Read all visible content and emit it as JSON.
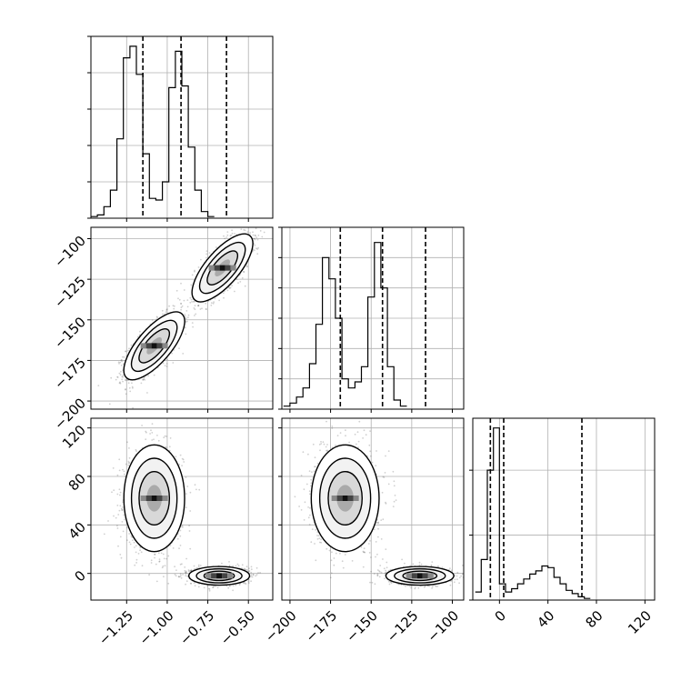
{
  "figure": {
    "background": "#ffffff",
    "grid": true
  },
  "colors": {
    "line": "#000000",
    "grid": "#b0b0b0",
    "density_dark": "#000000",
    "density_light": "#f4f4f4",
    "scatter": "#555555"
  },
  "chart_data": [
    {
      "type": "histogram",
      "param": "p1",
      "x_range": [
        -1.47,
        -0.35
      ],
      "bin_width": 0.04,
      "bin_start": -1.47,
      "counts": [
        1,
        2,
        7,
        17,
        48,
        97,
        104,
        87,
        39,
        12,
        11,
        22,
        79,
        101,
        80,
        43,
        17,
        4,
        1
      ],
      "y_max": 110,
      "quantile_lines": [
        -1.15,
        -0.915,
        -0.635
      ],
      "x_ticks": [
        -1.25,
        -1.0,
        -0.75,
        -0.5
      ],
      "y_ticks": [
        0,
        22,
        44,
        66,
        88,
        110
      ],
      "x_tick_labels": [],
      "y_tick_labels": []
    },
    {
      "type": "histogram",
      "param": "p2",
      "x_range": [
        -205,
        -93
      ],
      "bin_width": 4,
      "bin_start": -204,
      "counts": [
        1,
        2,
        4,
        7,
        15,
        28,
        50,
        43,
        30,
        10,
        7,
        9,
        14,
        37,
        55,
        40,
        14,
        3,
        1
      ],
      "y_max": 60,
      "quantile_lines": [
        -169,
        -143,
        -116.5
      ],
      "x_ticks": [
        -200,
        -175,
        -150,
        -125,
        -100
      ],
      "y_ticks": [
        0,
        10,
        20,
        30,
        40,
        50,
        60
      ],
      "x_tick_labels": [],
      "y_tick_labels": []
    },
    {
      "type": "histogram",
      "param": "p3",
      "x_range": [
        -22,
        128
      ],
      "bin_width": 5,
      "bin_start": -20,
      "counts": [
        5,
        25,
        80,
        106,
        10,
        5,
        7,
        10,
        13,
        16,
        18,
        21,
        20,
        14,
        10,
        6,
        4,
        2,
        1
      ],
      "y_max": 112,
      "quantile_lines": [
        -7.5,
        3.5,
        68
      ],
      "x_ticks": [
        0,
        40,
        80,
        120
      ],
      "y_ticks": [
        0,
        40,
        80
      ],
      "x_tick_labels": [
        "0",
        "40",
        "80",
        "120"
      ],
      "y_tick_labels": []
    },
    {
      "type": "scatter_density",
      "param_x": "p1",
      "param_y": "p2",
      "x_range": [
        -1.47,
        -0.35
      ],
      "y_range": [
        -205,
        -93
      ],
      "x_ticks": [
        -1.25,
        -1.0,
        -0.75,
        -0.5
      ],
      "y_ticks": [
        -200,
        -175,
        -150,
        -125,
        -100
      ],
      "x_tick_labels": [],
      "y_tick_labels": [
        "−200",
        "−175",
        "−150",
        "−125",
        "−100"
      ],
      "modes": [
        {
          "mean": [
            -1.08,
            -166
          ],
          "sd": [
            0.085,
            9.5
          ],
          "rho": 0.72,
          "weight": 0.5
        },
        {
          "mean": [
            -0.66,
            -118
          ],
          "sd": [
            0.085,
            9.5
          ],
          "rho": 0.72,
          "weight": 0.5
        }
      ]
    },
    {
      "type": "scatter_density",
      "param_x": "p1",
      "param_y": "p3",
      "x_range": [
        -1.47,
        -0.35
      ],
      "y_range": [
        -22,
        128
      ],
      "x_ticks": [
        -1.25,
        -1.0,
        -0.75,
        -0.5
      ],
      "y_ticks": [
        0,
        40,
        80,
        120
      ],
      "x_tick_labels": [
        "−1.25",
        "−1.00",
        "−0.75",
        "−0.50"
      ],
      "y_tick_labels": [
        "0",
        "40",
        "80",
        "120"
      ],
      "modes": [
        {
          "mean": [
            -1.08,
            62
          ],
          "sd": [
            0.085,
            20
          ],
          "rho": 0.0,
          "weight": 0.5
        },
        {
          "mean": [
            -0.68,
            -2
          ],
          "sd": [
            0.085,
            3.5
          ],
          "rho": 0.0,
          "weight": 0.5
        }
      ]
    },
    {
      "type": "scatter_density",
      "param_x": "p2",
      "param_y": "p3",
      "x_range": [
        -205,
        -93
      ],
      "y_range": [
        -22,
        128
      ],
      "x_ticks": [
        -200,
        -175,
        -150,
        -125,
        -100
      ],
      "y_ticks": [
        0,
        40,
        80,
        120
      ],
      "x_tick_labels": [
        "−200",
        "−175",
        "−150",
        "−125",
        "−100"
      ],
      "y_tick_labels": [],
      "modes": [
        {
          "mean": [
            -166,
            62
          ],
          "sd": [
            9.5,
            20
          ],
          "rho": 0.0,
          "weight": 0.5
        },
        {
          "mean": [
            -120,
            -2
          ],
          "sd": [
            9.5,
            3.5
          ],
          "rho": 0.0,
          "weight": 0.5
        }
      ]
    }
  ]
}
